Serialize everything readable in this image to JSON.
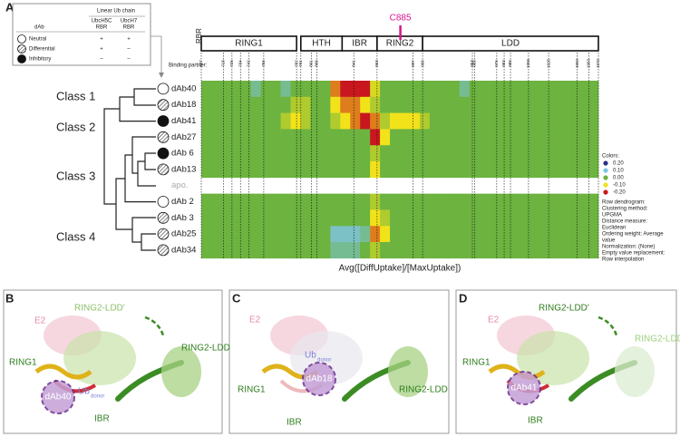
{
  "panel_labels": [
    "A",
    "B",
    "C",
    "D"
  ],
  "legend": {
    "col_header": "dAb",
    "group_header": "Linear Ub chain",
    "columns": [
      [
        "UbcH5C",
        "RBR"
      ],
      [
        "UbcH7",
        "RBR"
      ]
    ],
    "rows": [
      {
        "label": "Neutral",
        "symbol": "neutral",
        "cells": [
          "+",
          "+"
        ]
      },
      {
        "label": "Differential",
        "symbol": "differential",
        "cells": [
          "+",
          "–"
        ]
      },
      {
        "label": "Inhibitory",
        "symbol": "inhibitory",
        "cells": [
          "–",
          "–"
        ]
      }
    ]
  },
  "domain_map": {
    "label": "RBR",
    "domains": [
      {
        "name": "RING1",
        "start": 697,
        "end": 787
      },
      {
        "name": "HTH",
        "start": 791,
        "end": 830
      },
      {
        "name": "IBR",
        "start": 830,
        "end": 863
      },
      {
        "name": "RING2",
        "start": 863,
        "end": 906
      },
      {
        "name": "LDD",
        "start": 906,
        "end": 1072
      }
    ],
    "residues": [
      697,
      718,
      726,
      734,
      742,
      756,
      787,
      791,
      801,
      806,
      841,
      863,
      897,
      906,
      953,
      955,
      976,
      983,
      989,
      1006,
      1025,
      1052,
      1063,
      1072
    ],
    "marker": {
      "label": "C885",
      "residue": 885,
      "color": "#d6168a"
    }
  },
  "heatmap": {
    "binding_partner_label": "Binding partner:",
    "classes": [
      "Class 1",
      "Class 2",
      "Class 3",
      "Class 4"
    ],
    "rows": [
      {
        "label": "dAb40",
        "symbol": "neutral",
        "values": [
          0,
          0,
          0,
          0,
          0,
          0.05,
          0,
          0,
          0.05,
          0,
          0,
          0,
          0,
          -0.15,
          -0.2,
          -0.2,
          -0.2,
          -0.08,
          0,
          0,
          0,
          0,
          0,
          0,
          0,
          0,
          0.05,
          0,
          0,
          0,
          0,
          0,
          0,
          0,
          0,
          0,
          0,
          0,
          0,
          0
        ]
      },
      {
        "label": "dAb18",
        "symbol": "differential",
        "values": [
          0,
          0,
          0,
          0,
          0,
          0,
          0,
          0,
          0,
          -0.05,
          -0.05,
          0,
          0,
          -0.1,
          -0.15,
          -0.15,
          -0.1,
          -0.05,
          0,
          0,
          0,
          0,
          0,
          0,
          0,
          0,
          0,
          0,
          0,
          0,
          0,
          0,
          0,
          0,
          0,
          0,
          0,
          0,
          0,
          0
        ]
      },
      {
        "label": "dAb41",
        "symbol": "inhibitory",
        "values": [
          0,
          0,
          0,
          0,
          0,
          0,
          0,
          0,
          -0.05,
          -0.1,
          -0.05,
          0,
          0,
          -0.05,
          -0.1,
          -0.15,
          -0.2,
          -0.15,
          -0.05,
          -0.1,
          -0.1,
          -0.1,
          -0.05,
          0,
          0,
          0,
          0,
          0,
          0,
          0,
          0,
          0,
          0,
          0,
          0,
          0,
          0,
          0,
          0,
          0
        ]
      },
      {
        "label": "dAb27",
        "symbol": "differential",
        "values": [
          0,
          0,
          0,
          0,
          0,
          0,
          0,
          0,
          0,
          0,
          0,
          0,
          0,
          0,
          0,
          0,
          0,
          -0.2,
          -0.1,
          0,
          0,
          0,
          0,
          0,
          0,
          0,
          0,
          0,
          0,
          0,
          0,
          0,
          0,
          0,
          0,
          0,
          0,
          0,
          0,
          0
        ]
      },
      {
        "label": "dAb 6",
        "symbol": "inhibitory",
        "values": [
          0,
          0,
          0,
          0,
          0,
          0,
          0,
          0,
          0,
          0,
          0,
          0,
          0,
          0,
          0,
          0,
          0,
          -0.05,
          0,
          0,
          0,
          0,
          0,
          0,
          0,
          0,
          0,
          0,
          0,
          0,
          0,
          0,
          0,
          0,
          0,
          0,
          0,
          0,
          0,
          0
        ]
      },
      {
        "label": "dAb13",
        "symbol": "differential",
        "values": [
          0,
          0,
          0,
          0,
          0,
          0,
          0,
          0,
          0,
          0,
          0,
          0,
          0,
          0,
          0,
          0,
          0,
          -0.1,
          0,
          0,
          0,
          0,
          0,
          0,
          0,
          0,
          0,
          0,
          0,
          0,
          0,
          0,
          0,
          0,
          0,
          0,
          0,
          0,
          0,
          0
        ]
      },
      {
        "label": "apo."
      },
      {
        "label": "dAb 2",
        "symbol": "neutral",
        "values": [
          0,
          0,
          0,
          0,
          0,
          0,
          0,
          0,
          0,
          0,
          0,
          0,
          0,
          0,
          0,
          0,
          0,
          -0.05,
          0,
          0,
          0,
          0,
          0,
          0,
          0,
          0,
          0,
          0,
          0,
          0,
          0,
          0,
          0,
          0,
          0,
          0,
          0,
          0,
          0,
          0
        ]
      },
      {
        "label": "dAb 3",
        "symbol": "differential",
        "values": [
          0,
          0,
          0,
          0,
          0,
          0,
          0,
          0,
          0,
          0,
          0,
          0,
          0,
          0,
          0,
          0,
          0,
          -0.1,
          -0.05,
          0,
          0,
          0,
          0,
          0,
          0,
          0,
          0,
          0,
          0,
          0,
          0,
          0,
          0,
          0,
          0,
          0,
          0,
          0,
          0,
          0
        ]
      },
      {
        "label": "dAb25",
        "symbol": "differential",
        "values": [
          0,
          0,
          0,
          0,
          0,
          0,
          0,
          0,
          0,
          0,
          0,
          0,
          0,
          0.08,
          0.08,
          0.08,
          0.05,
          -0.15,
          -0.1,
          0,
          0,
          0,
          0,
          0,
          0,
          0,
          0,
          0,
          0,
          0,
          0,
          0,
          0,
          0,
          0,
          0,
          0,
          0,
          0,
          0
        ]
      },
      {
        "label": "dAb34",
        "symbol": "differential",
        "values": [
          0,
          0,
          0,
          0,
          0,
          0,
          0,
          0,
          0,
          0,
          0,
          0,
          0,
          0.05,
          0.05,
          0.05,
          0,
          -0.05,
          0,
          0,
          0,
          0,
          0,
          0,
          0,
          0,
          0,
          0,
          0,
          0,
          0,
          0,
          0,
          0,
          0,
          0,
          0,
          0,
          0,
          0
        ]
      }
    ],
    "x_label": "Avg([DiffUptake]/[MaxUptake])",
    "colorscale": {
      "title": "Colors:",
      "ticks": [
        {
          "value": 0.2,
          "label": "0.20"
        },
        {
          "value": 0.1,
          "label": "0.10"
        },
        {
          "value": 0,
          "label": "0.00"
        },
        {
          "value": -0.1,
          "label": "-0.10"
        },
        {
          "value": -0.2,
          "label": "-0.20"
        }
      ],
      "colors": [
        "#2b2f8c",
        "#7fc4e6",
        "#6cb33f",
        "#f2e21a",
        "#c8171e"
      ]
    },
    "notes": [
      "Row dendrogram:",
      "Clustering method:",
      "UPGMA",
      "Distance measure:",
      "Euclidean",
      "Ordering weight: Average",
      "value",
      "Normalization: (None)",
      "Empty value replacement:",
      "Row interpolation"
    ]
  },
  "structures": [
    {
      "e2": "E2",
      "ldd_prime": "RING2-LDD'",
      "ring1": "RING1",
      "ldd": "RING2-LDD",
      "ub": "Ub",
      "ub_sub": "donor",
      "ibr": "IBR",
      "dab": "dAb40"
    },
    {
      "e2": "E2",
      "ub": "Ub",
      "ub_sub": "donor",
      "ring1": "RING1",
      "dab": "dAb18",
      "ldd": "RING2-LDD",
      "ibr": "IBR"
    },
    {
      "e2": "E2",
      "ldd_prime": "RING2-LDD'",
      "ring1": "RING1",
      "ldd": "RING2-LDD",
      "dab": "dAb41",
      "ibr": "IBR"
    }
  ]
}
